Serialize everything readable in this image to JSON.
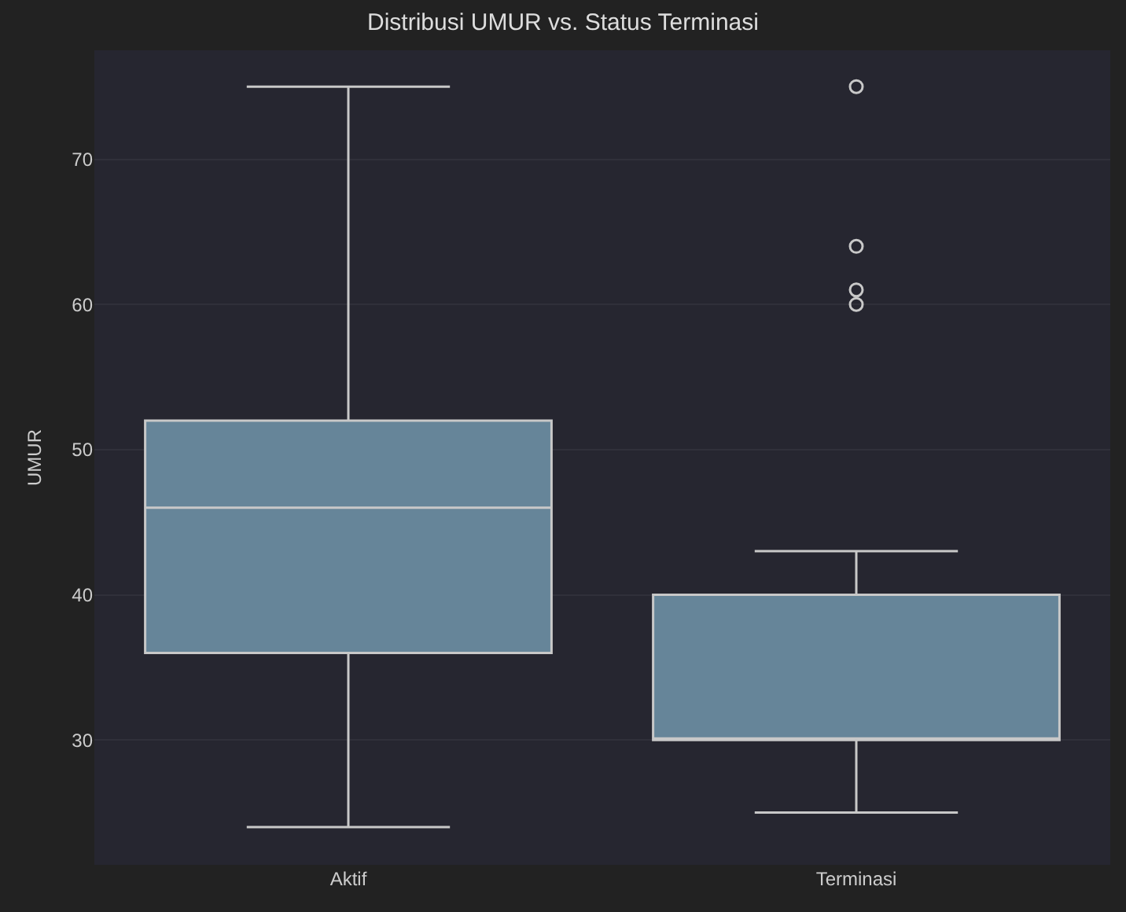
{
  "chart_data": {
    "type": "box",
    "title": "Distribusi UMUR vs. Status Terminasi",
    "ylabel": "UMUR",
    "categories": [
      "Aktif",
      "Terminasi"
    ],
    "color": "#668599",
    "boxes": [
      {
        "low": 24,
        "q1": 36,
        "median": 46,
        "q3": 52,
        "high": 75
      },
      {
        "low": 25,
        "q1": 30,
        "median": 30,
        "q3": 40,
        "high": 43,
        "outliers": [
          75,
          64,
          61,
          60
        ]
      }
    ],
    "ylim": [
      21.4,
      77.5
    ],
    "yticks": [
      30,
      40,
      50,
      60,
      70
    ],
    "grid": "y"
  }
}
